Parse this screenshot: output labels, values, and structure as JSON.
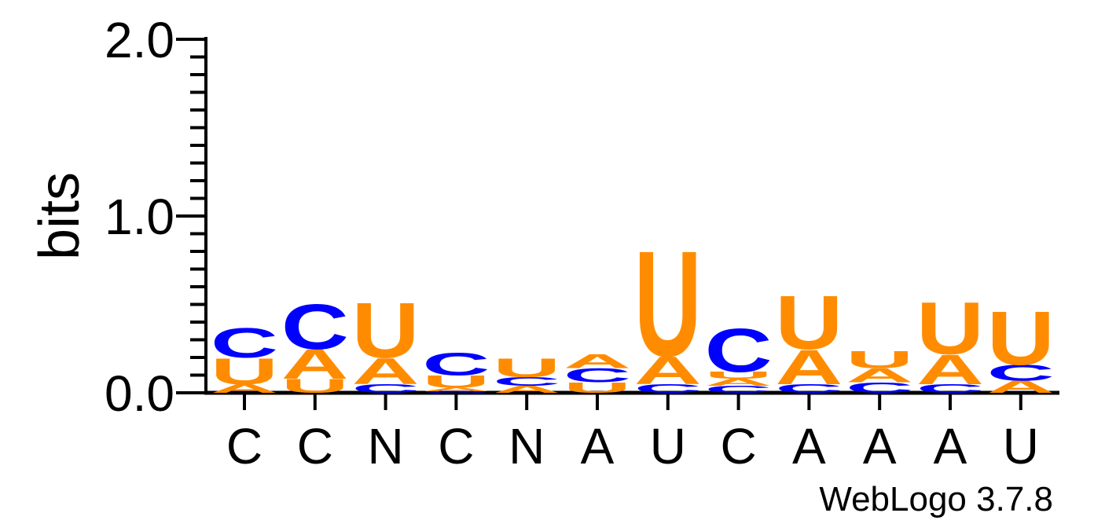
{
  "chart_data": {
    "type": "sequence-logo",
    "ylabel": "bits",
    "ylim": [
      0,
      2.0
    ],
    "yticks": [
      "0.0",
      "1.0",
      "2.0"
    ],
    "minor_tick_step": 0.1,
    "colors": {
      "A": "#FF8C00",
      "U": "#FF8C00",
      "C": "#0000FF",
      "G": "#0000FF"
    },
    "positions": [
      {
        "label": "C",
        "stack": [
          {
            "letter": "A",
            "bits": 0.05
          },
          {
            "letter": "U",
            "bits": 0.15
          },
          {
            "letter": "C",
            "bits": 0.17
          }
        ]
      },
      {
        "label": "C",
        "stack": [
          {
            "letter": "U",
            "bits": 0.08
          },
          {
            "letter": "A",
            "bits": 0.17
          },
          {
            "letter": "C",
            "bits": 0.26
          }
        ]
      },
      {
        "label": "N",
        "stack": [
          {
            "letter": "C",
            "bits": 0.05
          },
          {
            "letter": "A",
            "bits": 0.15
          },
          {
            "letter": "U",
            "bits": 0.32
          }
        ]
      },
      {
        "label": "C",
        "stack": [
          {
            "letter": "G",
            "bits": 0.01
          },
          {
            "letter": "A",
            "bits": 0.02
          },
          {
            "letter": "U",
            "bits": 0.07
          },
          {
            "letter": "C",
            "bits": 0.13
          }
        ]
      },
      {
        "label": "N",
        "stack": [
          {
            "letter": "A",
            "bits": 0.04
          },
          {
            "letter": "C",
            "bits": 0.05
          },
          {
            "letter": "U",
            "bits": 0.11
          }
        ]
      },
      {
        "label": "A",
        "stack": [
          {
            "letter": "U",
            "bits": 0.06
          },
          {
            "letter": "C",
            "bits": 0.08
          },
          {
            "letter": "A",
            "bits": 0.08
          }
        ]
      },
      {
        "label": "U",
        "stack": [
          {
            "letter": "C",
            "bits": 0.05
          },
          {
            "letter": "A",
            "bits": 0.16
          },
          {
            "letter": "U",
            "bits": 0.61
          }
        ]
      },
      {
        "label": "C",
        "stack": [
          {
            "letter": "C",
            "bits": 0.04
          },
          {
            "letter": "A",
            "bits": 0.04
          },
          {
            "letter": "U",
            "bits": 0.04
          },
          {
            "letter": "C",
            "bits": 0.25
          }
        ]
      },
      {
        "label": "A",
        "stack": [
          {
            "letter": "C",
            "bits": 0.05
          },
          {
            "letter": "A",
            "bits": 0.2
          },
          {
            "letter": "U",
            "bits": 0.31
          }
        ]
      },
      {
        "label": "A",
        "stack": [
          {
            "letter": "C",
            "bits": 0.06
          },
          {
            "letter": "A",
            "bits": 0.08
          },
          {
            "letter": "U",
            "bits": 0.1
          }
        ]
      },
      {
        "label": "A",
        "stack": [
          {
            "letter": "C",
            "bits": 0.05
          },
          {
            "letter": "A",
            "bits": 0.17
          },
          {
            "letter": "U",
            "bits": 0.3
          }
        ]
      },
      {
        "label": "U",
        "stack": [
          {
            "letter": "A",
            "bits": 0.07
          },
          {
            "letter": "C",
            "bits": 0.09
          },
          {
            "letter": "U",
            "bits": 0.31
          }
        ]
      }
    ],
    "footer": "WebLogo 3.7.8"
  }
}
